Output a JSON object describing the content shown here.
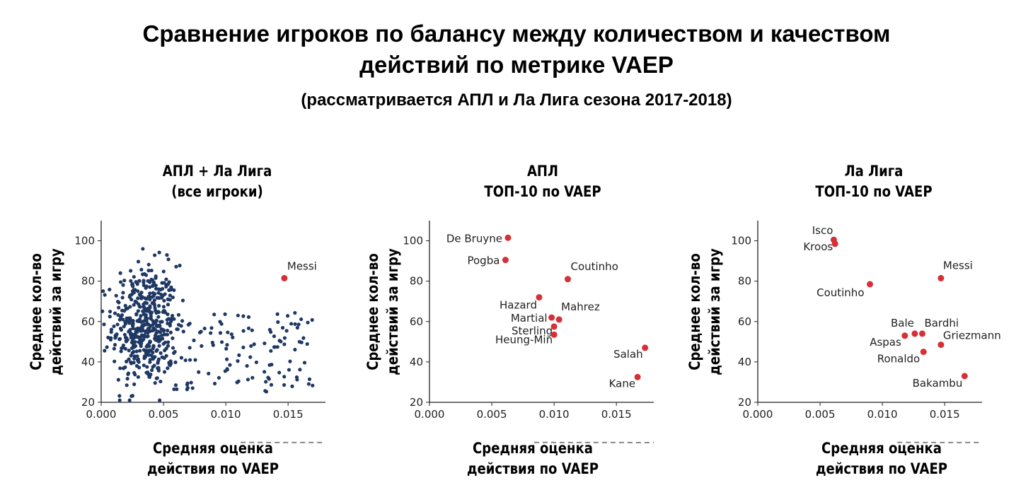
{
  "title_line1": "Сравнение игроков по балансу между количеством и качеством",
  "title_line2": "действий по метрике VAEP",
  "subtitle": "(рассматривается АПЛ и Ла Лига сезона 2017-2018)",
  "colors": {
    "scatter": "#1f3864",
    "highlight": "#d62f35",
    "curve": "#888888"
  },
  "chart_data": [
    {
      "type": "scatter",
      "title_line1": "АПЛ + Ла Лига",
      "title_line2": "(все игроки)",
      "xlabel_line1": "Средняя оценка",
      "xlabel_line2": "действия по VAEP",
      "ylabel_line1": "Среднее кол-во",
      "ylabel_line2": "действий за игру",
      "xlim": [
        0,
        0.018
      ],
      "ylim": [
        20,
        110
      ],
      "xticks": [
        "0.000",
        "0.005",
        "0.010",
        "0.015"
      ],
      "yticks": [
        "20",
        "40",
        "60",
        "80",
        "100"
      ],
      "curve": {
        "style": "dashed",
        "x": [
          0.0112,
          0.018
        ],
        "k": 0.0011903
      },
      "highlight": [
        {
          "label": "Messi",
          "x": 0.0147,
          "y": 81.5
        }
      ],
      "series_points_count": 600
    },
    {
      "type": "scatter",
      "title_line1": "АПЛ",
      "title_line2": "ТОП-10 по VAEP",
      "xlabel_line1": "Средняя оценка",
      "xlabel_line2": "действия по VAEP",
      "ylabel_line1": "Среднее кол-во",
      "ylabel_line2": "действий за игру",
      "xlim": [
        0,
        0.018
      ],
      "ylim": [
        20,
        110
      ],
      "xticks": [
        "0.000",
        "0.005",
        "0.010",
        "0.015"
      ],
      "yticks": [
        "20",
        "40",
        "60",
        "80",
        "100"
      ],
      "curve": {
        "style": "dashed",
        "x": [
          0.0084,
          0.018
        ],
        "k": 0.0009015
      },
      "points": [
        {
          "label": "De Bruyne",
          "x": 0.0063,
          "y": 101.5
        },
        {
          "label": "Pogba",
          "x": 0.0061,
          "y": 90.5
        },
        {
          "label": "Coutinho",
          "x": 0.0111,
          "y": 81
        },
        {
          "label": "Hazard",
          "x": 0.0088,
          "y": 72
        },
        {
          "label": "Mahrez",
          "x": 0.0104,
          "y": 61
        },
        {
          "label": "Martial",
          "x": 0.0098,
          "y": 62
        },
        {
          "label": "Sterling",
          "x": 0.01,
          "y": 57.5
        },
        {
          "label": "Heung-Min",
          "x": 0.01,
          "y": 53.5
        },
        {
          "label": "Salah",
          "x": 0.0173,
          "y": 47
        },
        {
          "label": "Kane",
          "x": 0.0167,
          "y": 32.5
        }
      ]
    },
    {
      "type": "scatter",
      "title_line1": "Ла Лига",
      "title_line2": "ТОП-10 по VAEP",
      "xlabel_line1": "Средняя оценка",
      "xlabel_line2": "действия по VAEP",
      "ylabel_line1": "Среднее кол-во",
      "ylabel_line2": "действий за игру",
      "xlim": [
        0,
        0.018
      ],
      "ylim": [
        20,
        110
      ],
      "xticks": [
        "0.000",
        "0.005",
        "0.010",
        "0.015"
      ],
      "yticks": [
        "20",
        "40",
        "60",
        "80",
        "100"
      ],
      "curve": {
        "style": "dashed",
        "x": [
          0.0112,
          0.018
        ],
        "k": 0.0011903
      },
      "points": [
        {
          "label": "Isco",
          "x": 0.0061,
          "y": 100.5
        },
        {
          "label": "Kroos",
          "x": 0.0062,
          "y": 98.5
        },
        {
          "label": "Messi",
          "x": 0.0147,
          "y": 81.5
        },
        {
          "label": "Coutinho",
          "x": 0.009,
          "y": 78.5
        },
        {
          "label": "Bale",
          "x": 0.0126,
          "y": 54
        },
        {
          "label": "Bardhi",
          "x": 0.0132,
          "y": 54
        },
        {
          "label": "Aspas",
          "x": 0.0118,
          "y": 53
        },
        {
          "label": "Griezmann",
          "x": 0.0147,
          "y": 48.5
        },
        {
          "label": "Ronaldo",
          "x": 0.0133,
          "y": 45
        },
        {
          "label": "Bakambu",
          "x": 0.0166,
          "y": 33
        }
      ]
    }
  ]
}
